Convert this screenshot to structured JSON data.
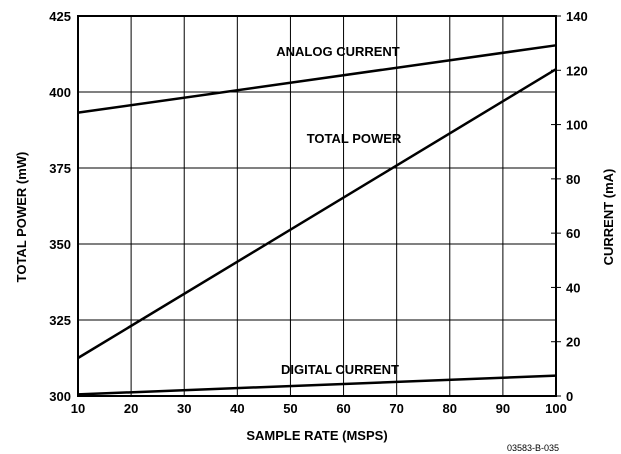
{
  "chart_data": {
    "type": "line",
    "xlabel": "SAMPLE RATE (MSPS)",
    "ylabel_left": "TOTAL POWER (mW)",
    "ylabel_right": "CURRENT (mA)",
    "xlim": [
      10,
      100
    ],
    "ylim_left": [
      300,
      425
    ],
    "ylim_right": [
      0,
      140
    ],
    "x_ticks": [
      10,
      20,
      30,
      40,
      50,
      60,
      70,
      80,
      90,
      100
    ],
    "y_left_ticks": [
      300,
      325,
      350,
      375,
      400,
      425
    ],
    "y_right_ticks": [
      0,
      20,
      40,
      60,
      80,
      100,
      120,
      140
    ],
    "grid": true,
    "series": [
      {
        "name": "ANALOG CURRENT",
        "axis": "right",
        "x": [
          10,
          100
        ],
        "y": [
          104.4,
          129.2
        ]
      },
      {
        "name": "TOTAL POWER",
        "axis": "left",
        "x": [
          10,
          100
        ],
        "y": [
          312.5,
          407.5
        ]
      },
      {
        "name": "DIGITAL CURRENT",
        "axis": "right",
        "x": [
          10,
          100
        ],
        "y": [
          0.6,
          7.5
        ]
      }
    ],
    "figure_id": "03583-B-035"
  }
}
